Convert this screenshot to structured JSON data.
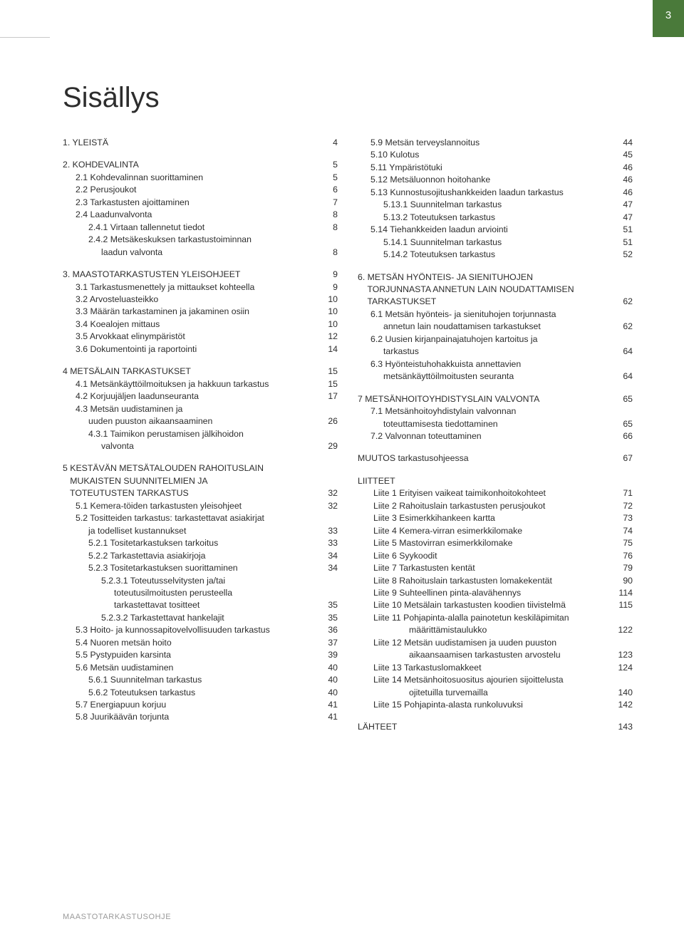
{
  "page_number": "3",
  "title": "Sisällys",
  "footer": "MAASTOTARKASTUSOHJE",
  "colors": {
    "accent": "#4a7a3a",
    "text": "#2d2d2d",
    "footer": "#9a9a9a",
    "rule": "#c8c8c8",
    "bg": "#ffffff"
  },
  "typography": {
    "title_fontsize": 40,
    "body_fontsize": 12.3,
    "footer_fontsize": 11,
    "family": "Arial"
  },
  "left": [
    {
      "t": "block",
      "lines": [
        {
          "indent": 0,
          "label": "1. YLEISTÄ",
          "page": "4"
        }
      ]
    },
    {
      "t": "block",
      "lines": [
        {
          "indent": 0,
          "label": "2. KOHDEVALINTA",
          "page": "5"
        },
        {
          "indent": 1,
          "label": "2.1 Kohdevalinnan suorittaminen",
          "page": "5"
        },
        {
          "indent": 1,
          "label": "2.2 Perusjoukot",
          "page": "6"
        },
        {
          "indent": 1,
          "label": "2.3 Tarkastusten ajoittaminen",
          "page": "7"
        },
        {
          "indent": 1,
          "label": "2.4 Laadunvalvonta",
          "page": "8"
        },
        {
          "indent": 2,
          "label": "2.4.1 Virtaan tallennetut tiedot",
          "page": "8"
        },
        {
          "indent": 2,
          "label": "2.4.2 Metsäkeskuksen tarkastustoiminnan",
          "page": ""
        },
        {
          "indent": 3,
          "label": "laadun valvonta",
          "page": "8"
        }
      ]
    },
    {
      "t": "block",
      "lines": [
        {
          "indent": 0,
          "label": "3. MAASTOTARKASTUSTEN YLEISOHJEET",
          "page": "9"
        },
        {
          "indent": 1,
          "label": "3.1 Tarkastusmenettely ja mittaukset kohteella",
          "page": "9"
        },
        {
          "indent": 1,
          "label": "3.2 Arvosteluasteikko",
          "page": "10"
        },
        {
          "indent": 1,
          "label": "3.3 Määrän tarkastaminen ja jakaminen osiin",
          "page": "10"
        },
        {
          "indent": 1,
          "label": "3.4 Koealojen mittaus",
          "page": "10"
        },
        {
          "indent": 1,
          "label": "3.5 Arvokkaat elinympäristöt",
          "page": "12"
        },
        {
          "indent": 1,
          "label": "3.6 Dokumentointi ja raportointi",
          "page": "14"
        }
      ]
    },
    {
      "t": "block",
      "lines": [
        {
          "indent": 0,
          "label": "4 METSÄLAIN TARKASTUKSET",
          "page": "15"
        },
        {
          "indent": 1,
          "label": "4.1 Metsänkäyttöilmoituksen ja hakkuun tarkastus",
          "page": "15"
        },
        {
          "indent": 1,
          "label": "4.2 Korjuujäljen laadunseuranta",
          "page": "17"
        },
        {
          "indent": 1,
          "label": "4.3 Metsän uudistaminen ja",
          "page": ""
        },
        {
          "indent": 2,
          "label": "uuden puuston aikaansaaminen",
          "page": "26"
        },
        {
          "indent": 2,
          "label": "4.3.1 Taimikon perustamisen jälkihoidon",
          "page": ""
        },
        {
          "indent": 3,
          "label": "valvonta",
          "page": "29"
        }
      ]
    },
    {
      "t": "block",
      "lines": [
        {
          "indent": 0,
          "label": "5 KESTÄVÄN METSÄTALOUDEN RAHOITUSLAIN",
          "page": ""
        },
        {
          "indent": 0,
          "label": "   MUKAISTEN SUUNNITELMIEN JA",
          "page": ""
        },
        {
          "indent": 0,
          "label": "   TOTEUTUSTEN TARKASTUS",
          "page": "32"
        },
        {
          "indent": 1,
          "label": "5.1 Kemera-töiden tarkastusten yleisohjeet",
          "page": "32"
        },
        {
          "indent": 1,
          "label": "5.2 Tositteiden tarkastus: tarkastettavat asiakirjat",
          "page": ""
        },
        {
          "indent": 2,
          "label": "ja todelliset kustannukset",
          "page": "33"
        },
        {
          "indent": 2,
          "label": "5.2.1 Tositetarkastuksen tarkoitus",
          "page": "33"
        },
        {
          "indent": 2,
          "label": "5.2.2 Tarkastettavia asiakirjoja",
          "page": "34"
        },
        {
          "indent": 2,
          "label": "5.2.3 Tositetarkastuksen suorittaminen",
          "page": "34"
        },
        {
          "indent": 3,
          "label": "5.2.3.1 Toteutusselvitysten ja/tai",
          "page": ""
        },
        {
          "indent": 4,
          "label": "toteutusilmoitusten perusteella",
          "page": ""
        },
        {
          "indent": 4,
          "label": "tarkastettavat tositteet",
          "page": "35"
        },
        {
          "indent": 3,
          "label": "5.2.3.2 Tarkastettavat hankelajit",
          "page": "35"
        },
        {
          "indent": 1,
          "label": "5.3 Hoito- ja kunnossapitovelvollisuuden tarkastus",
          "page": "36"
        },
        {
          "indent": 1,
          "label": "5.4 Nuoren metsän hoito",
          "page": "37"
        },
        {
          "indent": 1,
          "label": "5.5 Pystypuiden karsinta",
          "page": "39"
        },
        {
          "indent": 1,
          "label": "5.6 Metsän uudistaminen",
          "page": "40"
        },
        {
          "indent": 2,
          "label": "5.6.1 Suunnitelman tarkastus",
          "page": "40"
        },
        {
          "indent": 2,
          "label": "5.6.2 Toteutuksen tarkastus",
          "page": "40"
        },
        {
          "indent": 1,
          "label": "5.7 Energiapuun korjuu",
          "page": "41"
        },
        {
          "indent": 1,
          "label": "5.8 Juurikäävän torjunta",
          "page": "41"
        }
      ]
    }
  ],
  "right": [
    {
      "t": "block",
      "lines": [
        {
          "indent": 1,
          "label": "5.9 Metsän terveyslannoitus",
          "page": "44"
        },
        {
          "indent": 1,
          "label": "5.10 Kulotus",
          "page": "45"
        },
        {
          "indent": 1,
          "label": "5.11 Ympäristötuki",
          "page": "46"
        },
        {
          "indent": 1,
          "label": "5.12 Metsäluonnon hoitohanke",
          "page": "46"
        },
        {
          "indent": 1,
          "label": "5.13 Kunnostusojitushankkeiden laadun tarkastus",
          "page": "46"
        },
        {
          "indent": 2,
          "label": "5.13.1 Suunnitelman tarkastus",
          "page": "47"
        },
        {
          "indent": 2,
          "label": "5.13.2 Toteutuksen tarkastus",
          "page": "47"
        },
        {
          "indent": 1,
          "label": "5.14 Tiehankkeiden laadun arviointi",
          "page": "51"
        },
        {
          "indent": 2,
          "label": "5.14.1 Suunnitelman tarkastus",
          "page": "51"
        },
        {
          "indent": 2,
          "label": "5.14.2 Toteutuksen tarkastus",
          "page": "52"
        }
      ]
    },
    {
      "t": "block",
      "lines": [
        {
          "indent": 0,
          "label": "6. METSÄN HYÖNTEIS- JA SIENITUHOJEN",
          "page": ""
        },
        {
          "indent": 0,
          "label": "    TORJUNNASTA ANNETUN LAIN NOUDATTAMISEN",
          "page": ""
        },
        {
          "indent": 0,
          "label": "    TARKASTUKSET",
          "page": "62"
        },
        {
          "indent": 1,
          "label": "6.1 Metsän hyönteis- ja sienituhojen torjunnasta",
          "page": ""
        },
        {
          "indent": 2,
          "label": "annetun lain noudattamisen tarkastukset",
          "page": "62"
        },
        {
          "indent": 1,
          "label": "6.2 Uusien kirjanpainajatuhojen kartoitus ja",
          "page": ""
        },
        {
          "indent": 2,
          "label": "tarkastus",
          "page": "64"
        },
        {
          "indent": 1,
          "label": "6.3 Hyönteistuhohakkuista annettavien",
          "page": ""
        },
        {
          "indent": 2,
          "label": "metsänkäyttöilmoitusten seuranta",
          "page": "64"
        }
      ]
    },
    {
      "t": "block",
      "lines": [
        {
          "indent": 0,
          "label": "7 METSÄNHOITOYHDISTYSLAIN VALVONTA",
          "page": "65"
        },
        {
          "indent": 1,
          "label": "7.1 Metsänhoitoyhdistylain valvonnan",
          "page": ""
        },
        {
          "indent": 2,
          "label": "toteuttamisesta tiedottaminen",
          "page": "65"
        },
        {
          "indent": 1,
          "label": "7.2 Valvonnan toteuttaminen",
          "page": "66"
        }
      ]
    },
    {
      "t": "block",
      "lines": [
        {
          "indent": 0,
          "label": "MUUTOS tarkastusohjeessa",
          "page": "67"
        }
      ]
    },
    {
      "t": "block",
      "lines": [
        {
          "indent": 0,
          "label": "LIITTEET",
          "page": ""
        },
        {
          "indent": "liite",
          "label": "Liite 1 Erityisen vaikeat taimikonhoitokohteet",
          "page": "71"
        },
        {
          "indent": "liite",
          "label": "Liite 2 Rahoituslain tarkastusten perusjoukot",
          "page": "72"
        },
        {
          "indent": "liite",
          "label": "Liite 3 Esimerkkihankeen kartta",
          "page": "73"
        },
        {
          "indent": "liite",
          "label": "Liite 4 Kemera-virran esimerkkilomake",
          "page": "74"
        },
        {
          "indent": "liite",
          "label": "Liite 5 Mastovirran esimerkkilomake",
          "page": "75"
        },
        {
          "indent": "liite",
          "label": "Liite 6 Syykoodit",
          "page": "76"
        },
        {
          "indent": "liite",
          "label": "Liite 7 Tarkastusten kentät",
          "page": "79"
        },
        {
          "indent": "liite",
          "label": "Liite 8 Rahoituslain tarkastusten lomakekentät",
          "page": "90"
        },
        {
          "indent": "liite",
          "label": "Liite 9 Suhteellinen pinta-alavähennys",
          "page": "114"
        },
        {
          "indent": "liite",
          "label": "Liite 10 Metsälain tarkastusten koodien tiivistelmä",
          "page": "115"
        },
        {
          "indent": "liite",
          "label": "Liite 11 Pohjapinta-alalla painotetun keskiläpimitan",
          "page": ""
        },
        {
          "indent": 4,
          "label": "määrittämistaulukko",
          "page": "122"
        },
        {
          "indent": "liite",
          "label": "Liite 12 Metsän uudistamisen ja uuden puuston",
          "page": ""
        },
        {
          "indent": 4,
          "label": "aikaansaamisen tarkastusten arvostelu",
          "page": "123"
        },
        {
          "indent": "liite",
          "label": "Liite 13 Tarkastuslomakkeet",
          "page": "124"
        },
        {
          "indent": "liite",
          "label": "Liite 14 Metsänhoitosuositus ajourien sijoittelusta",
          "page": ""
        },
        {
          "indent": 4,
          "label": "ojitetuilla turvemailla",
          "page": "140"
        },
        {
          "indent": "liite",
          "label": "Liite 15 Pohjapinta-alasta runkoluvuksi",
          "page": "142"
        }
      ]
    },
    {
      "t": "block",
      "lines": [
        {
          "indent": 0,
          "label": "LÄHTEET",
          "page": "143"
        }
      ]
    }
  ]
}
